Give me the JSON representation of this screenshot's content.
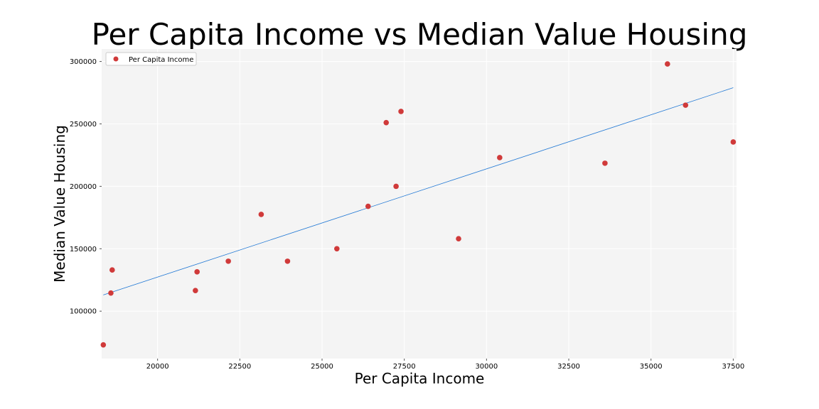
{
  "chart_data": {
    "type": "scatter",
    "title": "Per Capita Income vs Median Value Housing",
    "xlabel": "Per Capita Income",
    "ylabel": "Median Value Housing",
    "xlim": [
      18300,
      37600
    ],
    "ylim": [
      62000,
      310000
    ],
    "x_ticks": [
      20000,
      22500,
      25000,
      27500,
      30000,
      32500,
      35000,
      37500
    ],
    "x_tick_labels": [
      "20000",
      "22500",
      "25000",
      "27500",
      "30000",
      "32500",
      "35000",
      "37500"
    ],
    "y_ticks": [
      100000,
      150000,
      200000,
      250000,
      300000
    ],
    "y_tick_labels": [
      "100000",
      "150000",
      "200000",
      "250000",
      "300000"
    ],
    "grid": true,
    "legend": {
      "placement": "top-left",
      "entries": [
        "Per Capita Income"
      ]
    },
    "series": [
      {
        "name": "Per Capita Income",
        "color": "#d03a3a",
        "points": [
          {
            "x": 18350,
            "y": 73000
          },
          {
            "x": 18580,
            "y": 114500
          },
          {
            "x": 18620,
            "y": 133000
          },
          {
            "x": 21150,
            "y": 116500
          },
          {
            "x": 21200,
            "y": 131500
          },
          {
            "x": 22150,
            "y": 140000
          },
          {
            "x": 23150,
            "y": 177500
          },
          {
            "x": 23950,
            "y": 140000
          },
          {
            "x": 25450,
            "y": 150000
          },
          {
            "x": 26400,
            "y": 184000
          },
          {
            "x": 26950,
            "y": 251000
          },
          {
            "x": 27250,
            "y": 200000
          },
          {
            "x": 27400,
            "y": 260000
          },
          {
            "x": 29150,
            "y": 158000
          },
          {
            "x": 30400,
            "y": 223000
          },
          {
            "x": 33600,
            "y": 218500
          },
          {
            "x": 35500,
            "y": 298000
          },
          {
            "x": 36050,
            "y": 265000
          },
          {
            "x": 37500,
            "y": 235500
          }
        ]
      }
    ],
    "trendline": {
      "color": "#1f77d4",
      "from": {
        "x": 18350,
        "y": 113000
      },
      "to": {
        "x": 37500,
        "y": 279000
      }
    }
  }
}
